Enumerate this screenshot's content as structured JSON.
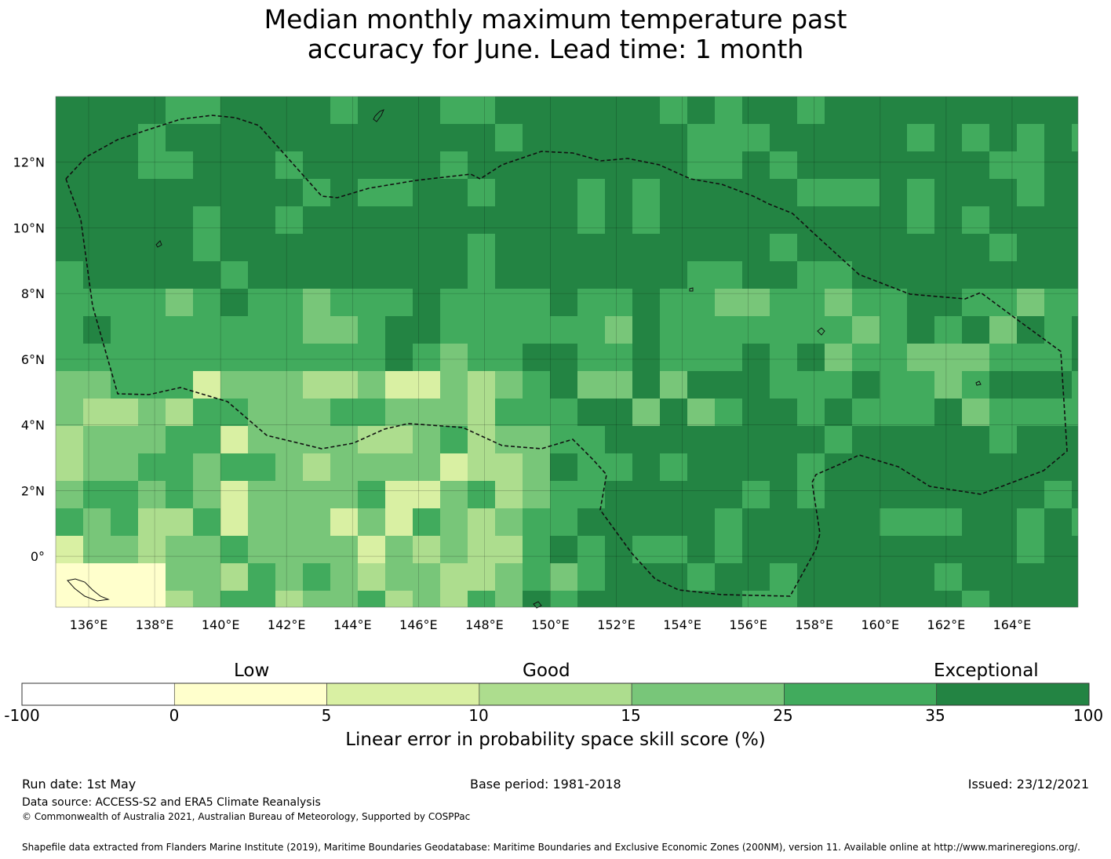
{
  "title": {
    "line1": "Median monthly maximum temperature past",
    "line2": "accuracy for June. Lead time: 1 month"
  },
  "map": {
    "lon_range": [
      135.0,
      166.0
    ],
    "lat_range": [
      -1.55,
      14.0
    ],
    "grid_step_deg": 0.833,
    "gridlines": true,
    "x_ticks": [
      "136°E",
      "138°E",
      "140°E",
      "142°E",
      "144°E",
      "146°E",
      "148°E",
      "150°E",
      "152°E",
      "154°E",
      "156°E",
      "158°E",
      "160°E",
      "162°E",
      "164°E"
    ],
    "y_ticks": [
      "12°N",
      "10°N",
      "8°N",
      "6°N",
      "4°N",
      "2°N",
      "0°"
    ],
    "boundary_style": "dashed",
    "field_description": "skill score categories per grid cell; mostly 25-35 and 35-100, lower values in south-west"
  },
  "colorbar": {
    "category_labels": [
      "Low",
      "Good",
      "Exceptional"
    ],
    "tick_labels": [
      "-100",
      "0",
      "5",
      "10",
      "15",
      "25",
      "35",
      "100"
    ],
    "colors": [
      "#ffffff",
      "#ffffcc",
      "#d9f0a3",
      "#addd8e",
      "#78c679",
      "#41ab5d",
      "#238443"
    ],
    "label": "Linear error in probability space skill score (%)"
  },
  "footer": {
    "run_date": "Run date: 1st May",
    "base_period": "Base period: 1981-2018",
    "issued": "Issued: 23/12/2021",
    "data_source": "Data source: ACCESS-S2 and ERA5 Climate Reanalysis",
    "copyright": "© Commonwealth of Australia 2021, Australian Bureau of Meteorology, Supported by COSPPac",
    "shapefile": "Shapefile data extracted from Flanders Marine Institute (2019), Maritime Boundaries Geodatabase: Maritime Boundaries and Exclusive Economic Zones (200NM), version 11. Available online at http://www.marineregions.org/."
  }
}
